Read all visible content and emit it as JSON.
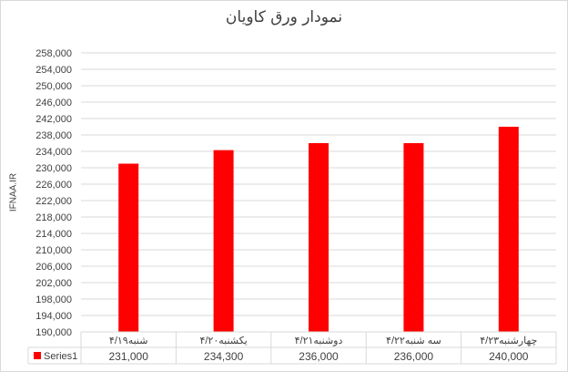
{
  "chart_data": {
    "type": "bar",
    "title": "نمودار ورق کاویان",
    "ylabel": "IFNAA.IR",
    "xlabel": "",
    "categories": [
      "شنبه۴/۱۹",
      "یکشنبه۴/۲۰",
      "دوشنبه۴/۲۱",
      "سه شنبه۴/۲۲",
      "چهارشنبه۴/۲۳"
    ],
    "series": [
      {
        "name": "Series1",
        "values": [
          231000,
          234300,
          236000,
          236000,
          240000
        ],
        "labels": [
          "231,000",
          "234,300",
          "236,000",
          "236,000",
          "240,000"
        ]
      }
    ],
    "ylim": [
      190000,
      258000
    ],
    "ytick_step": 4000,
    "grid": true,
    "data_table": true,
    "legend": "data-table-left",
    "colors": {
      "bar": "#ff0000",
      "grid": "#d9d9d9",
      "text": "#404040"
    }
  }
}
